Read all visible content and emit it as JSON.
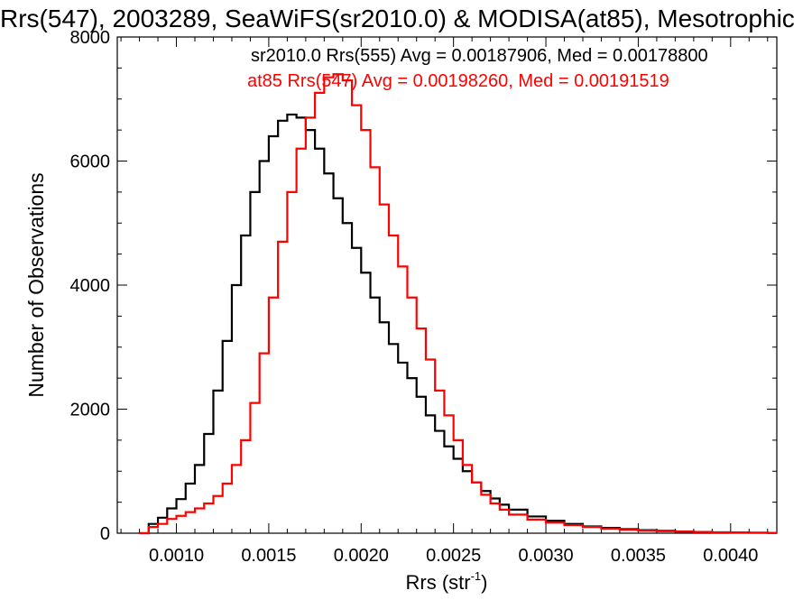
{
  "chart_data": {
    "type": "line",
    "title": "Rrs(547), 2003289, SeaWiFS(sr2010.0) & MODISA(at85), Mesotrophic",
    "xlabel_main": "Rrs (str",
    "xlabel_sup": "-1",
    "xlabel_tail": ")",
    "ylabel": "Number of Observations",
    "xlim": [
      0.00068,
      0.00425
    ],
    "ylim": [
      0,
      8000
    ],
    "x_tick_labels": [
      "0.0010",
      "0.0015",
      "0.0020",
      "0.0025",
      "0.0030",
      "0.0035",
      "0.0040"
    ],
    "x_ticks": [
      0.001,
      0.0015,
      0.002,
      0.0025,
      0.003,
      0.0035,
      0.004
    ],
    "y_tick_labels": [
      "0",
      "2000",
      "4000",
      "6000",
      "8000"
    ],
    "y_ticks": [
      0,
      2000,
      4000,
      6000,
      8000
    ],
    "grid": false,
    "legend": "top-right",
    "annotations": [
      {
        "text": "sr2010.0 Rrs(555) Avg = 0.00187906, Med = 0.00178800",
        "color": "#000000"
      },
      {
        "text": "at85 Rrs(547) Avg = 0.00198260, Med = 0.00191519",
        "color": "#ff0000"
      }
    ],
    "series": [
      {
        "color": "#000000",
        "x": [
          0.0008,
          0.00085,
          0.0009,
          0.00095,
          0.001,
          0.00105,
          0.0011,
          0.00115,
          0.0012,
          0.00125,
          0.0013,
          0.00135,
          0.0014,
          0.00145,
          0.0015,
          0.00155,
          0.0016,
          0.00165,
          0.0017,
          0.00175,
          0.0018,
          0.00185,
          0.0019,
          0.00195,
          0.002,
          0.00205,
          0.0021,
          0.00215,
          0.0022,
          0.00225,
          0.0023,
          0.00235,
          0.0024,
          0.00245,
          0.0025,
          0.00255,
          0.0026,
          0.00265,
          0.0027,
          0.00275,
          0.0028,
          0.0029,
          0.003,
          0.0031,
          0.0032,
          0.0033,
          0.0034,
          0.0035,
          0.0036,
          0.0037,
          0.0038,
          0.0039,
          0.004,
          0.0041,
          0.0042
        ],
        "y": [
          0,
          150,
          250,
          400,
          550,
          800,
          1100,
          1600,
          2300,
          3100,
          4000,
          4800,
          5500,
          6000,
          6400,
          6650,
          6750,
          6700,
          6500,
          6200,
          5800,
          5400,
          5000,
          4600,
          4200,
          3800,
          3400,
          3050,
          2750,
          2500,
          2200,
          1900,
          1650,
          1400,
          1200,
          1000,
          820,
          680,
          560,
          460,
          380,
          270,
          200,
          150,
          110,
          85,
          65,
          50,
          38,
          28,
          20,
          15,
          12,
          8,
          5
        ]
      },
      {
        "color": "#ff0000",
        "x": [
          0.0008,
          0.00085,
          0.0009,
          0.00095,
          0.001,
          0.00105,
          0.0011,
          0.00115,
          0.0012,
          0.00125,
          0.0013,
          0.00135,
          0.0014,
          0.00145,
          0.0015,
          0.00155,
          0.0016,
          0.00165,
          0.0017,
          0.00175,
          0.0018,
          0.00185,
          0.0019,
          0.00195,
          0.002,
          0.00205,
          0.0021,
          0.00215,
          0.0022,
          0.00225,
          0.0023,
          0.00235,
          0.0024,
          0.00245,
          0.0025,
          0.00255,
          0.0026,
          0.00265,
          0.0027,
          0.00275,
          0.0028,
          0.0029,
          0.003,
          0.0031,
          0.0032,
          0.0033,
          0.0034,
          0.0035,
          0.0036,
          0.0037,
          0.0038,
          0.0039,
          0.004,
          0.0041,
          0.0042
        ],
        "y": [
          0,
          100,
          150,
          230,
          280,
          340,
          400,
          480,
          600,
          800,
          1100,
          1500,
          2100,
          2900,
          3800,
          4700,
          5500,
          6200,
          6700,
          7100,
          7350,
          7400,
          7300,
          6900,
          6500,
          5900,
          5300,
          4800,
          4300,
          3800,
          3300,
          2800,
          2300,
          1900,
          1500,
          1100,
          820,
          620,
          480,
          380,
          300,
          220,
          170,
          130,
          100,
          75,
          55,
          42,
          32,
          25,
          18,
          14,
          10,
          7,
          5
        ]
      }
    ]
  }
}
